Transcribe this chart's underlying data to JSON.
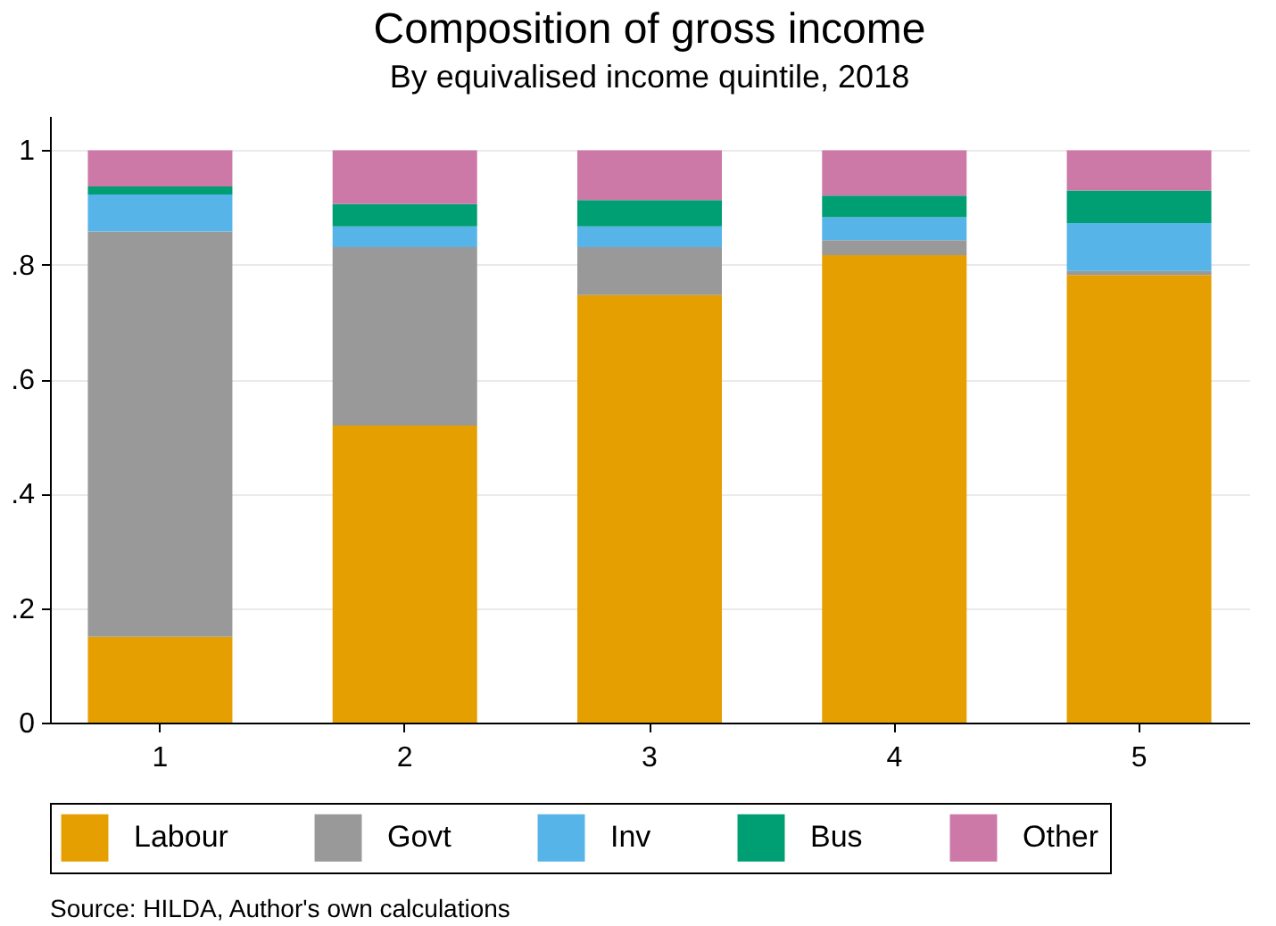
{
  "chart_data": {
    "type": "bar",
    "title": "Composition of gross income",
    "subtitle": "By equivalised income quintile, 2018",
    "categories": [
      "1",
      "2",
      "3",
      "4",
      "5"
    ],
    "stacked": true,
    "series": [
      {
        "name": "Labour",
        "color": "#e69f00",
        "values": [
          0.15,
          0.519,
          0.747,
          0.817,
          0.782
        ]
      },
      {
        "name": "Govt",
        "color": "#999999",
        "values": [
          0.708,
          0.312,
          0.084,
          0.026,
          0.007
        ]
      },
      {
        "name": "Inv",
        "color": "#56b4e9",
        "values": [
          0.065,
          0.036,
          0.036,
          0.04,
          0.084
        ]
      },
      {
        "name": "Bus",
        "color": "#009e73",
        "values": [
          0.014,
          0.039,
          0.046,
          0.038,
          0.057
        ]
      },
      {
        "name": "Other",
        "color": "#cc79a7",
        "values": [
          0.063,
          0.094,
          0.087,
          0.079,
          0.07
        ]
      }
    ],
    "ylim": [
      0,
      1.06
    ],
    "yticks": [
      0,
      {
        "value": 0.2,
        "label": ".2"
      },
      {
        "value": 0.4,
        "label": ".4"
      },
      {
        "value": 0.6,
        "label": ".6"
      },
      {
        "value": 0.8,
        "label": ".8"
      },
      1
    ],
    "grid": "y",
    "legend": "bottom",
    "annotations": [
      "Source: HILDA, Author's own calculations"
    ]
  }
}
